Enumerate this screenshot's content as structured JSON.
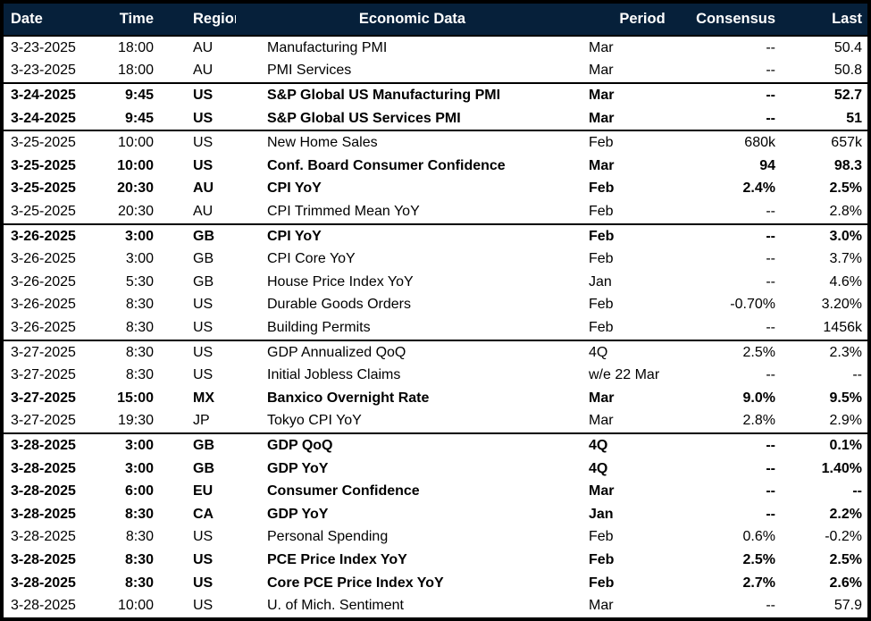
{
  "colors": {
    "header_bg": "#06203a",
    "header_text": "#ffffff",
    "body_text": "#000000",
    "grid_line": "#000000",
    "row_bg": "#ffffff"
  },
  "table": {
    "columns": [
      {
        "key": "date",
        "label": "Date"
      },
      {
        "key": "time",
        "label": "Time"
      },
      {
        "key": "region",
        "label": "Region"
      },
      {
        "key": "event",
        "label": "Economic Data"
      },
      {
        "key": "period",
        "label": "Period"
      },
      {
        "key": "consensus",
        "label": "Consensus"
      },
      {
        "key": "last",
        "label": "Last"
      }
    ],
    "groups": [
      {
        "date": "3-23-2025",
        "rows": [
          {
            "date": "3-23-2025",
            "time": "18:00",
            "region": "AU",
            "event": "Manufacturing PMI",
            "period": "Mar",
            "consensus": "--",
            "last": "50.4",
            "bold": false
          },
          {
            "date": "3-23-2025",
            "time": "18:00",
            "region": "AU",
            "event": "PMI Services",
            "period": "Mar",
            "consensus": "--",
            "last": "50.8",
            "bold": false
          }
        ]
      },
      {
        "date": "3-24-2025",
        "rows": [
          {
            "date": "3-24-2025",
            "time": "9:45",
            "region": "US",
            "event": "S&P Global US Manufacturing PMI",
            "period": "Mar",
            "consensus": "--",
            "last": "52.7",
            "bold": true
          },
          {
            "date": "3-24-2025",
            "time": "9:45",
            "region": "US",
            "event": "S&P Global US Services PMI",
            "period": "Mar",
            "consensus": "--",
            "last": "51",
            "bold": true
          }
        ]
      },
      {
        "date": "3-25-2025",
        "rows": [
          {
            "date": "3-25-2025",
            "time": "10:00",
            "region": "US",
            "event": "New Home Sales",
            "period": "Feb",
            "consensus": "680k",
            "last": "657k",
            "bold": false
          },
          {
            "date": "3-25-2025",
            "time": "10:00",
            "region": "US",
            "event": "Conf. Board Consumer Confidence",
            "period": "Mar",
            "consensus": "94",
            "last": "98.3",
            "bold": true
          },
          {
            "date": "3-25-2025",
            "time": "20:30",
            "region": "AU",
            "event": "CPI YoY",
            "period": "Feb",
            "consensus": "2.4%",
            "last": "2.5%",
            "bold": true
          },
          {
            "date": "3-25-2025",
            "time": "20:30",
            "region": "AU",
            "event": "CPI Trimmed Mean YoY",
            "period": "Feb",
            "consensus": "--",
            "last": "2.8%",
            "bold": false
          }
        ]
      },
      {
        "date": "3-26-2025",
        "rows": [
          {
            "date": "3-26-2025",
            "time": "3:00",
            "region": "GB",
            "event": "CPI YoY",
            "period": "Feb",
            "consensus": "--",
            "last": "3.0%",
            "bold": true
          },
          {
            "date": "3-26-2025",
            "time": "3:00",
            "region": "GB",
            "event": "CPI Core YoY",
            "period": "Feb",
            "consensus": "--",
            "last": "3.7%",
            "bold": false
          },
          {
            "date": "3-26-2025",
            "time": "5:30",
            "region": "GB",
            "event": "House Price Index YoY",
            "period": "Jan",
            "consensus": "--",
            "last": "4.6%",
            "bold": false
          },
          {
            "date": "3-26-2025",
            "time": "8:30",
            "region": "US",
            "event": "Durable Goods Orders",
            "period": "Feb",
            "consensus": "-0.70%",
            "last": "3.20%",
            "bold": false
          },
          {
            "date": "3-26-2025",
            "time": "8:30",
            "region": "US",
            "event": "Building Permits",
            "period": "Feb",
            "consensus": "--",
            "last": "1456k",
            "bold": false
          }
        ]
      },
      {
        "date": "3-27-2025",
        "rows": [
          {
            "date": "3-27-2025",
            "time": "8:30",
            "region": "US",
            "event": "GDP Annualized QoQ",
            "period": "4Q",
            "consensus": "2.5%",
            "last": "2.3%",
            "bold": false
          },
          {
            "date": "3-27-2025",
            "time": "8:30",
            "region": "US",
            "event": "Initial Jobless Claims",
            "period": "w/e 22 Mar",
            "consensus": "--",
            "last": "--",
            "bold": false
          },
          {
            "date": "3-27-2025",
            "time": "15:00",
            "region": "MX",
            "event": "Banxico Overnight Rate",
            "period": "Mar",
            "consensus": "9.0%",
            "last": "9.5%",
            "bold": true
          },
          {
            "date": "3-27-2025",
            "time": "19:30",
            "region": "JP",
            "event": "Tokyo CPI YoY",
            "period": "Mar",
            "consensus": "2.8%",
            "last": "2.9%",
            "bold": false
          }
        ]
      },
      {
        "date": "3-28-2025",
        "rows": [
          {
            "date": "3-28-2025",
            "time": "3:00",
            "region": "GB",
            "event": "GDP QoQ",
            "period": "4Q",
            "consensus": "--",
            "last": "0.1%",
            "bold": true
          },
          {
            "date": "3-28-2025",
            "time": "3:00",
            "region": "GB",
            "event": "GDP YoY",
            "period": "4Q",
            "consensus": "--",
            "last": "1.40%",
            "bold": true
          },
          {
            "date": "3-28-2025",
            "time": "6:00",
            "region": "EU",
            "event": "Consumer Confidence",
            "period": "Mar",
            "consensus": "--",
            "last": "--",
            "bold": true
          },
          {
            "date": "3-28-2025",
            "time": "8:30",
            "region": "CA",
            "event": "GDP YoY",
            "period": "Jan",
            "consensus": "--",
            "last": "2.2%",
            "bold": true
          },
          {
            "date": "3-28-2025",
            "time": "8:30",
            "region": "US",
            "event": "Personal Spending",
            "period": "Feb",
            "consensus": "0.6%",
            "last": "-0.2%",
            "bold": false
          },
          {
            "date": "3-28-2025",
            "time": "8:30",
            "region": "US",
            "event": "PCE Price Index YoY",
            "period": "Feb",
            "consensus": "2.5%",
            "last": "2.5%",
            "bold": true
          },
          {
            "date": "3-28-2025",
            "time": "8:30",
            "region": "US",
            "event": "Core PCE Price Index YoY",
            "period": "Feb",
            "consensus": "2.7%",
            "last": "2.6%",
            "bold": true
          },
          {
            "date": "3-28-2025",
            "time": "10:00",
            "region": "US",
            "event": "U. of Mich. Sentiment",
            "period": "Mar",
            "consensus": "--",
            "last": "57.9",
            "bold": false
          }
        ]
      }
    ]
  }
}
